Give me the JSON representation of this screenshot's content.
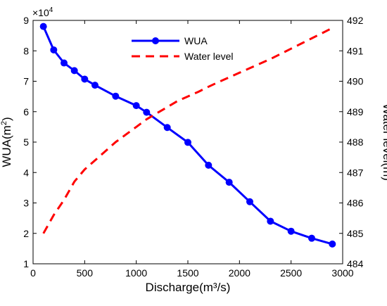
{
  "chart_data": {
    "type": "line",
    "x_axis": {
      "label": "Discharge(m³/s)",
      "range": [
        0,
        3000
      ],
      "ticks": [
        0,
        500,
        1000,
        1500,
        2000,
        2500,
        3000
      ]
    },
    "y_left_axis": {
      "label_main": "WUA(m",
      "label_sup": "2",
      "label_close": ")",
      "range": [
        1,
        9
      ],
      "ticks": [
        1,
        2,
        3,
        4,
        5,
        6,
        7,
        8,
        9
      ],
      "multiplier_base": "×10",
      "multiplier_exp": "4"
    },
    "y_right_axis": {
      "label": "Water level(m)",
      "range": [
        484,
        492
      ],
      "ticks": [
        484,
        485,
        486,
        487,
        488,
        489,
        490,
        491,
        492
      ]
    },
    "series": [
      {
        "name": "WUA",
        "axis": "left",
        "color": "#0000ff",
        "style": "solid-with-markers",
        "x": [
          100,
          200,
          300,
          400,
          500,
          600,
          800,
          1000,
          1100,
          1300,
          1500,
          1700,
          1900,
          2100,
          2300,
          2500,
          2700,
          2900
        ],
        "y": [
          8.8,
          8.03,
          7.6,
          7.35,
          7.07,
          6.87,
          6.51,
          6.2,
          5.98,
          5.48,
          4.99,
          4.24,
          3.68,
          3.04,
          2.4,
          2.07,
          1.84,
          1.65
        ]
      },
      {
        "name": "Water level",
        "axis": "right",
        "color": "#ff0000",
        "style": "dashed",
        "x": [
          100,
          200,
          300,
          400,
          500,
          600,
          700,
          800,
          900,
          1000,
          1100,
          1200,
          1300,
          1400,
          1500,
          1600,
          1700,
          1800,
          1900,
          2000,
          2100,
          2200,
          2300,
          2400,
          2500,
          2600,
          2700,
          2800,
          2900
        ],
        "y": [
          485.0,
          485.6,
          486.1,
          486.7,
          487.1,
          487.4,
          487.7,
          488.0,
          488.25,
          488.5,
          488.75,
          488.95,
          489.15,
          489.35,
          489.5,
          489.65,
          489.82,
          489.98,
          490.13,
          490.28,
          490.43,
          490.58,
          490.73,
          490.9,
          491.07,
          491.24,
          491.41,
          491.58,
          491.75
        ]
      }
    ],
    "legend": {
      "placement": "top-center"
    },
    "grid": false
  }
}
